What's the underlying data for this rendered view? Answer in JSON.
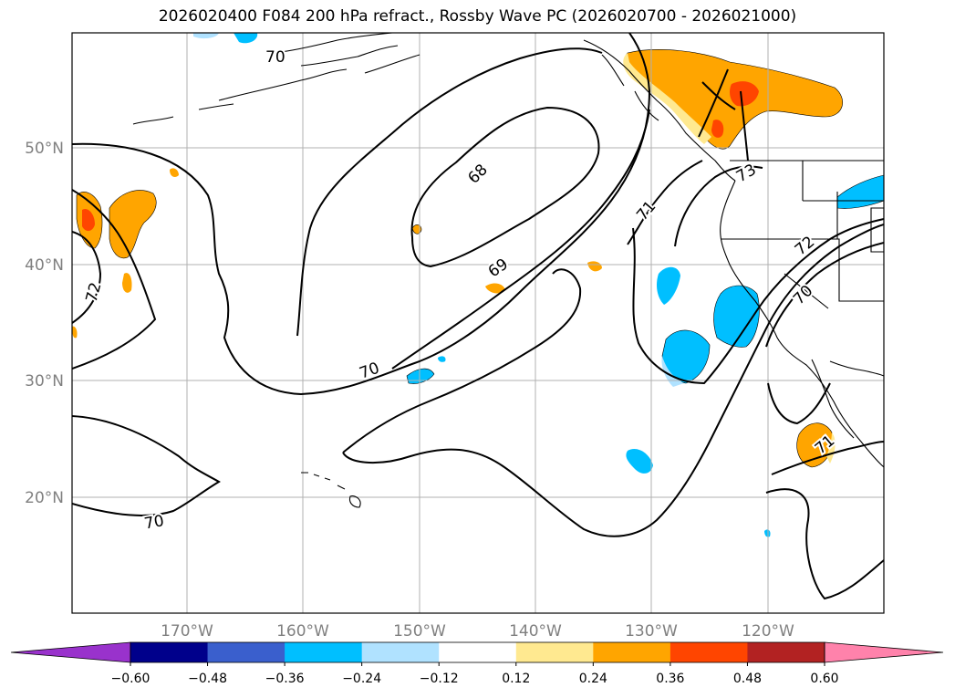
{
  "title": "2026020400 F084 200 hPa refract., Rossby Wave PC (2026020700 - 2026021000)",
  "map": {
    "lat_labels": [
      "50°N",
      "40°N",
      "30°N",
      "20°N"
    ],
    "lon_labels": [
      "170°W",
      "160°W",
      "150°W",
      "140°W",
      "130°W",
      "120°W"
    ],
    "contour_labels": [
      "70",
      "68",
      "69",
      "70",
      "71",
      "72",
      "73",
      "70",
      "72",
      "71",
      "70"
    ],
    "colors": {
      "contour": "#000000",
      "gridline": "#b0b0b0",
      "coast": "#000000"
    }
  },
  "colorbar": {
    "ticks": [
      "−0.60",
      "−0.48",
      "−0.36",
      "−0.24",
      "−0.12",
      "0.12",
      "0.24",
      "0.36",
      "0.48",
      "0.60"
    ],
    "colors": [
      "#9932cc",
      "#00008b",
      "#3a5fcd",
      "#00bfff",
      "#b0e2ff",
      "#ffffff",
      "#ffe990",
      "#ffa500",
      "#ff4500",
      "#b22222",
      "#ff82ab"
    ]
  }
}
